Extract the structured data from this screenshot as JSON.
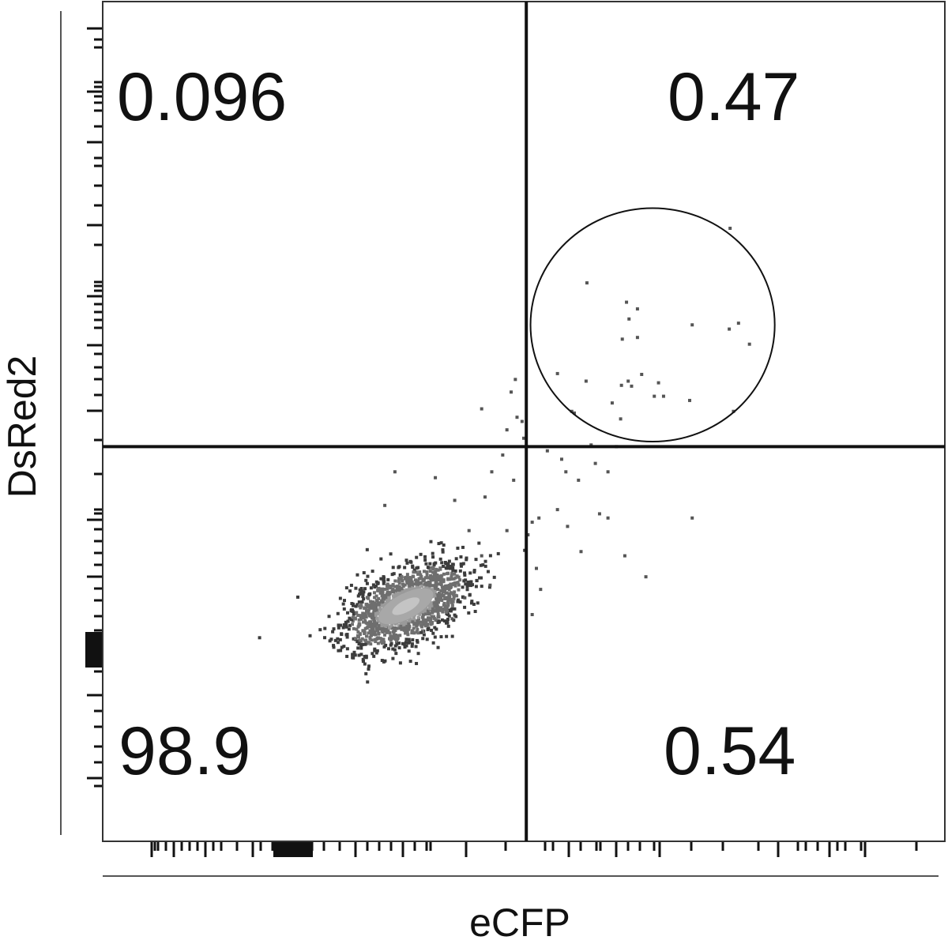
{
  "chart_data": {
    "type": "scatter",
    "xlabel": "eCFP",
    "ylabel": "DsRed2",
    "xlim": [
      0,
      1
    ],
    "ylim": [
      0,
      1
    ],
    "grid": false,
    "quadrant_gate": {
      "x": 0.503,
      "y": 0.47
    },
    "quadrants": [
      {
        "position": "top-left",
        "value": "0.096"
      },
      {
        "position": "top-right",
        "value": "0.47"
      },
      {
        "position": "bottom-left",
        "value": "98.9"
      },
      {
        "position": "bottom-right",
        "value": "0.54"
      }
    ],
    "circle_gate": {
      "cx": 0.653,
      "cy": 0.615,
      "rx": 0.145,
      "ry": 0.139
    },
    "dense_population": {
      "cx": 0.36,
      "cy": 0.28,
      "spread_x": 0.04,
      "spread_y": 0.02,
      "angle_deg": 28
    },
    "points": [
      [
        0.745,
        0.73
      ],
      [
        0.575,
        0.665
      ],
      [
        0.622,
        0.642
      ],
      [
        0.635,
        0.634
      ],
      [
        0.625,
        0.622
      ],
      [
        0.755,
        0.617
      ],
      [
        0.7,
        0.615
      ],
      [
        0.744,
        0.61
      ],
      [
        0.635,
        0.6
      ],
      [
        0.617,
        0.598
      ],
      [
        0.768,
        0.592
      ],
      [
        0.54,
        0.557
      ],
      [
        0.64,
        0.556
      ],
      [
        0.66,
        0.546
      ],
      [
        0.624,
        0.548
      ],
      [
        0.574,
        0.548
      ],
      [
        0.616,
        0.543
      ],
      [
        0.628,
        0.542
      ],
      [
        0.655,
        0.53
      ],
      [
        0.666,
        0.53
      ],
      [
        0.605,
        0.522
      ],
      [
        0.697,
        0.525
      ],
      [
        0.749,
        0.512
      ],
      [
        0.56,
        0.51
      ],
      [
        0.615,
        0.503
      ],
      [
        0.485,
        0.535
      ],
      [
        0.49,
        0.55
      ],
      [
        0.492,
        0.505
      ],
      [
        0.45,
        0.515
      ],
      [
        0.557,
        0.512
      ],
      [
        0.48,
        0.49
      ],
      [
        0.498,
        0.5
      ],
      [
        0.5,
        0.48
      ],
      [
        0.528,
        0.465
      ],
      [
        0.545,
        0.455
      ],
      [
        0.55,
        0.44
      ],
      [
        0.565,
        0.43
      ],
      [
        0.585,
        0.45
      ],
      [
        0.6,
        0.44
      ],
      [
        0.61,
        0.47
      ],
      [
        0.58,
        0.472
      ],
      [
        0.54,
        0.395
      ],
      [
        0.552,
        0.375
      ],
      [
        0.59,
        0.39
      ],
      [
        0.6,
        0.385
      ],
      [
        0.518,
        0.385
      ],
      [
        0.51,
        0.38
      ],
      [
        0.62,
        0.34
      ],
      [
        0.645,
        0.315
      ],
      [
        0.568,
        0.345
      ],
      [
        0.515,
        0.325
      ],
      [
        0.505,
        0.365
      ],
      [
        0.51,
        0.27
      ],
      [
        0.52,
        0.3
      ],
      [
        0.488,
        0.43
      ],
      [
        0.475,
        0.46
      ],
      [
        0.462,
        0.44
      ],
      [
        0.7,
        0.385
      ],
      [
        0.395,
        0.433
      ],
      [
        0.454,
        0.41
      ],
      [
        0.335,
        0.4
      ],
      [
        0.347,
        0.44
      ],
      [
        0.418,
        0.406
      ],
      [
        0.435,
        0.37
      ],
      [
        0.48,
        0.37
      ],
      [
        0.46,
        0.305
      ],
      [
        0.43,
        0.29
      ],
      [
        0.415,
        0.265
      ],
      [
        0.45,
        0.34
      ]
    ]
  }
}
